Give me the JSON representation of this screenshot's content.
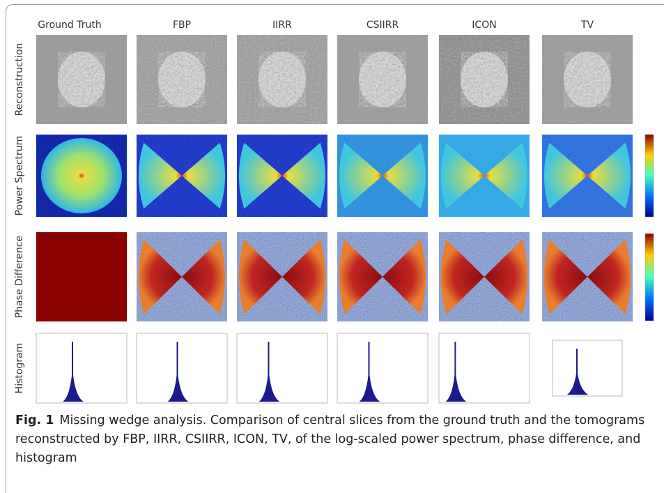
{
  "figure": {
    "columns": [
      "Ground Truth",
      "FBP",
      "IIRR",
      "CSIIRR",
      "ICON",
      "TV"
    ],
    "rows": [
      "Reconstruction",
      "Power Spectrum",
      "Phase Difference",
      "Histogram"
    ],
    "caption": {
      "label": "Fig. 1",
      "text": "Missing wedge analysis. Comparison of central slices from the ground truth and the tomograms reconstructed by FBP, IIRR, CSIIRR, ICON, TV, of the log-scaled power spectrum, phase difference, and histogram"
    }
  }
}
